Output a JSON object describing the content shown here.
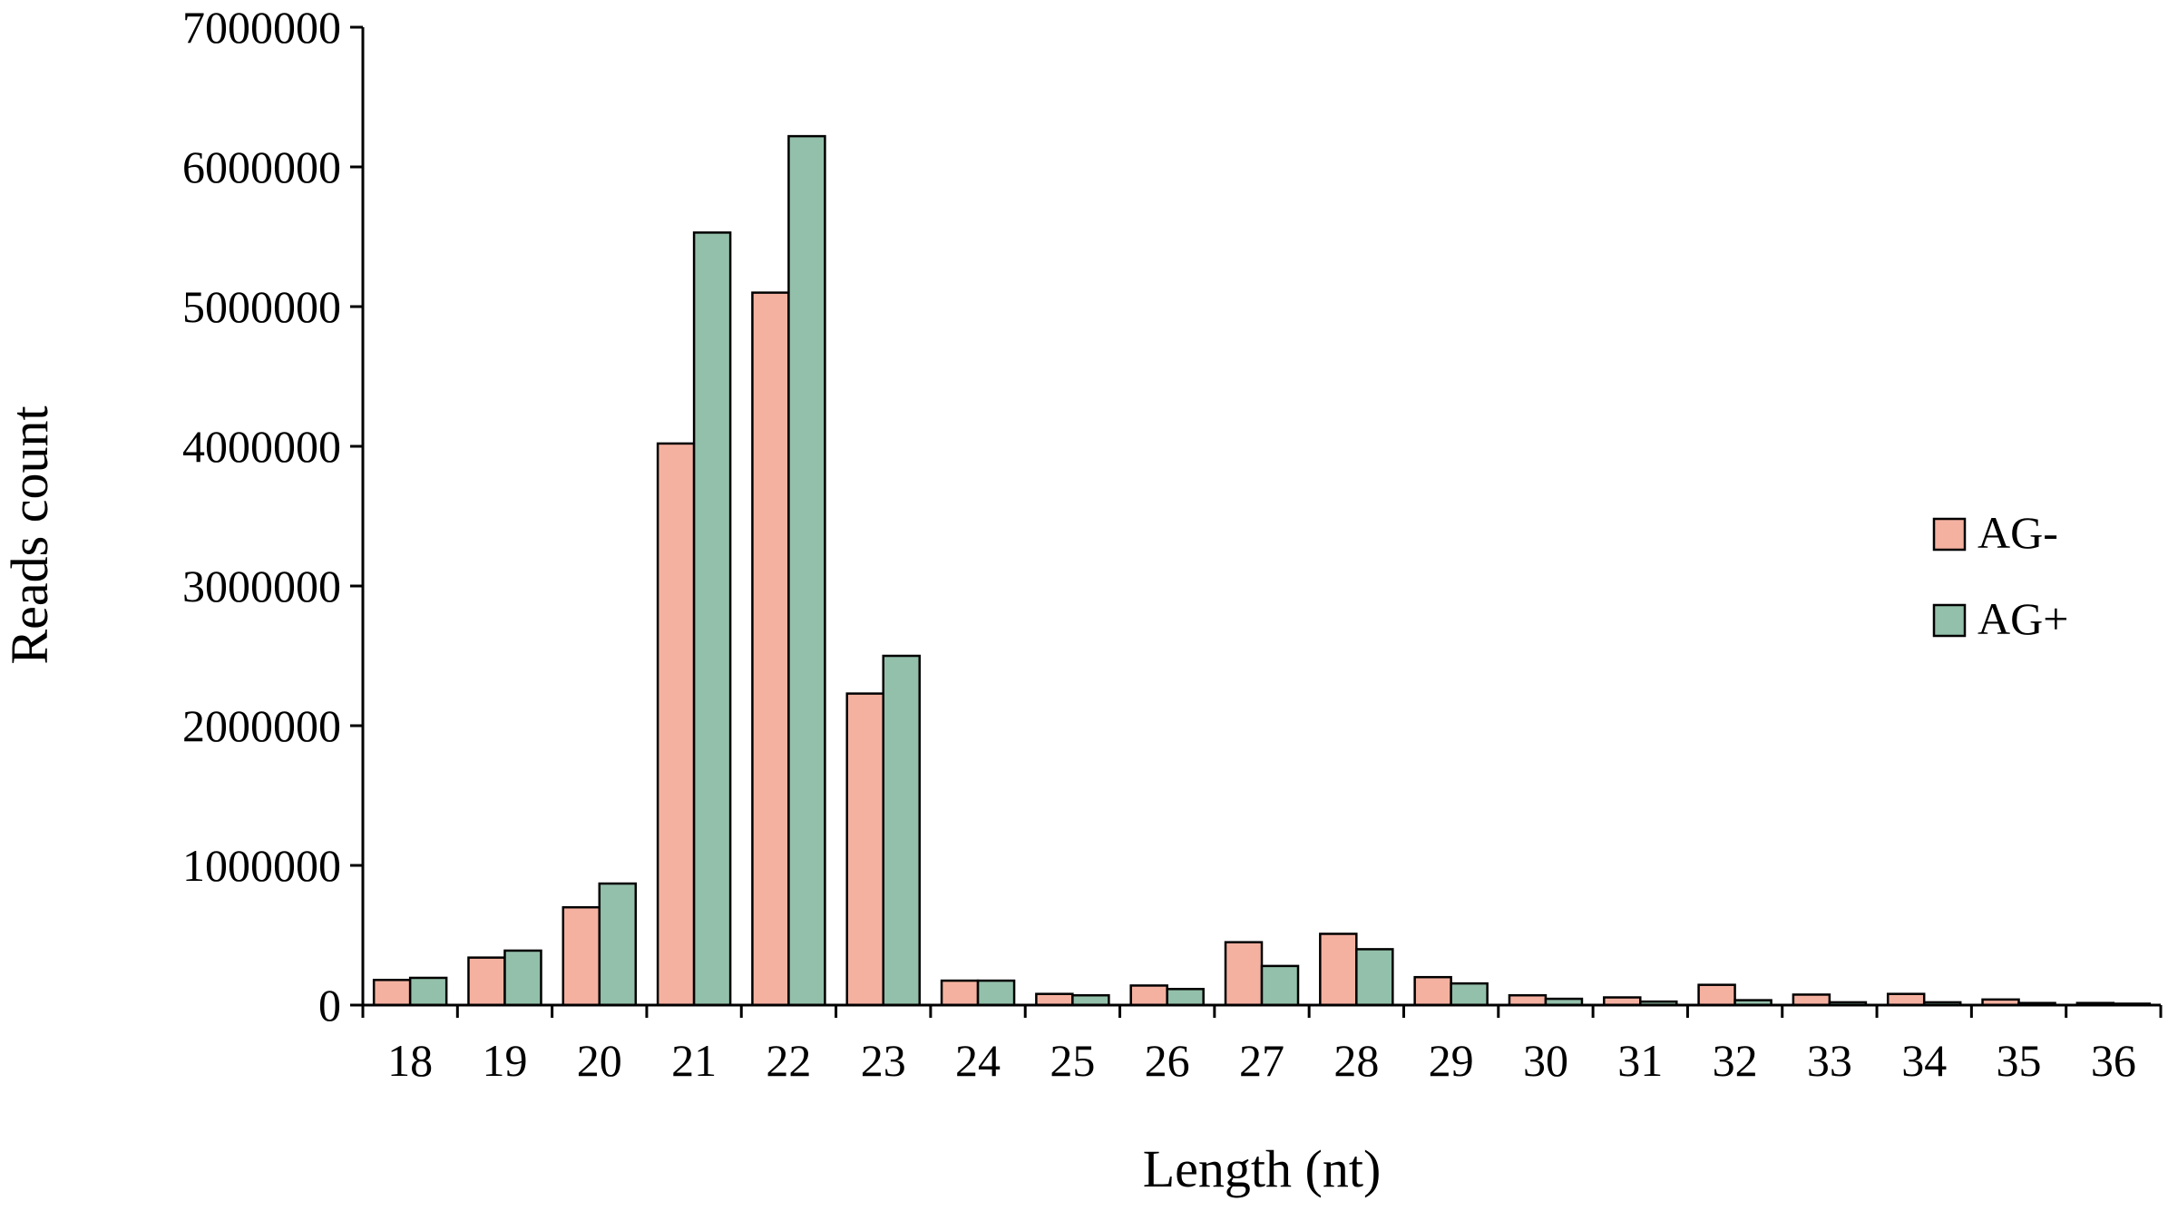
{
  "colors": {
    "AG-": "#f5b1a0",
    "AG+": "#93c0aa",
    "outline": "#000000"
  },
  "chart_data": {
    "type": "bar",
    "xlabel": "Length (nt)",
    "ylabel": "Reads count",
    "ylim": [
      0,
      7000000
    ],
    "yticks": [
      "0",
      "1000000",
      "2000000",
      "3000000",
      "4000000",
      "5000000",
      "6000000",
      "7000000"
    ],
    "grid": false,
    "legend_position": "right",
    "categories": [
      "18",
      "19",
      "20",
      "21",
      "22",
      "23",
      "24",
      "25",
      "26",
      "27",
      "28",
      "29",
      "30",
      "31",
      "32",
      "33",
      "34",
      "35",
      "36"
    ],
    "series": [
      {
        "name": "AG-",
        "values": [
          180000,
          340000,
          700000,
          4020000,
          5100000,
          2230000,
          175000,
          80000,
          140000,
          450000,
          510000,
          200000,
          70000,
          55000,
          145000,
          75000,
          80000,
          40000,
          15000
        ]
      },
      {
        "name": "AG+",
        "values": [
          195000,
          390000,
          870000,
          5530000,
          6220000,
          2500000,
          175000,
          70000,
          115000,
          280000,
          400000,
          155000,
          45000,
          25000,
          35000,
          20000,
          20000,
          15000,
          10000
        ]
      }
    ]
  }
}
